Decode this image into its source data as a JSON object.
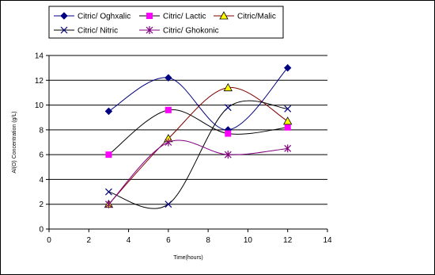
{
  "chart_data": {
    "type": "line",
    "xlabel": "Time(hours)",
    "ylabel": "Al(O) Concentration (g/L)",
    "xlim": [
      0,
      14
    ],
    "ylim": [
      0,
      14
    ],
    "x_ticks": [
      "0",
      "2",
      "4",
      "6",
      "8",
      "10",
      "12",
      "14"
    ],
    "y_ticks": [
      "0",
      "2",
      "4",
      "6",
      "8",
      "10",
      "12",
      "14"
    ],
    "grid": "horizontal",
    "legend_position": "top",
    "series": [
      {
        "name": "Citric/ Oghxalic",
        "marker": "diamond",
        "color": "#000080",
        "smooth_color": "#000080",
        "x": [
          3,
          6,
          9,
          12
        ],
        "values": [
          9.5,
          12.2,
          8.0,
          13.0
        ]
      },
      {
        "name": "Citric/ Lactic",
        "marker": "square",
        "color": "#ff00ff",
        "smooth_color": "#000000",
        "x": [
          3,
          6,
          9,
          12
        ],
        "values": [
          6.0,
          9.6,
          7.7,
          8.2
        ]
      },
      {
        "name": "Citric/Malic",
        "marker": "triangle",
        "color": "#ffff00",
        "smooth_color": "#800000",
        "x": [
          3,
          6,
          9,
          12
        ],
        "values": [
          2.0,
          7.3,
          11.4,
          8.7
        ]
      },
      {
        "name": "Citric/ Nitric",
        "marker": "x",
        "color": "#000080",
        "smooth_color": "#000000",
        "x": [
          3,
          6,
          9,
          12
        ],
        "values": [
          3.0,
          2.0,
          9.8,
          9.7
        ]
      },
      {
        "name": "Citric/ Ghokonic",
        "marker": "star",
        "color": "#800080",
        "smooth_color": "#800080",
        "x": [
          3,
          6,
          9,
          12
        ],
        "values": [
          2.0,
          7.0,
          6.0,
          6.5
        ]
      }
    ]
  }
}
